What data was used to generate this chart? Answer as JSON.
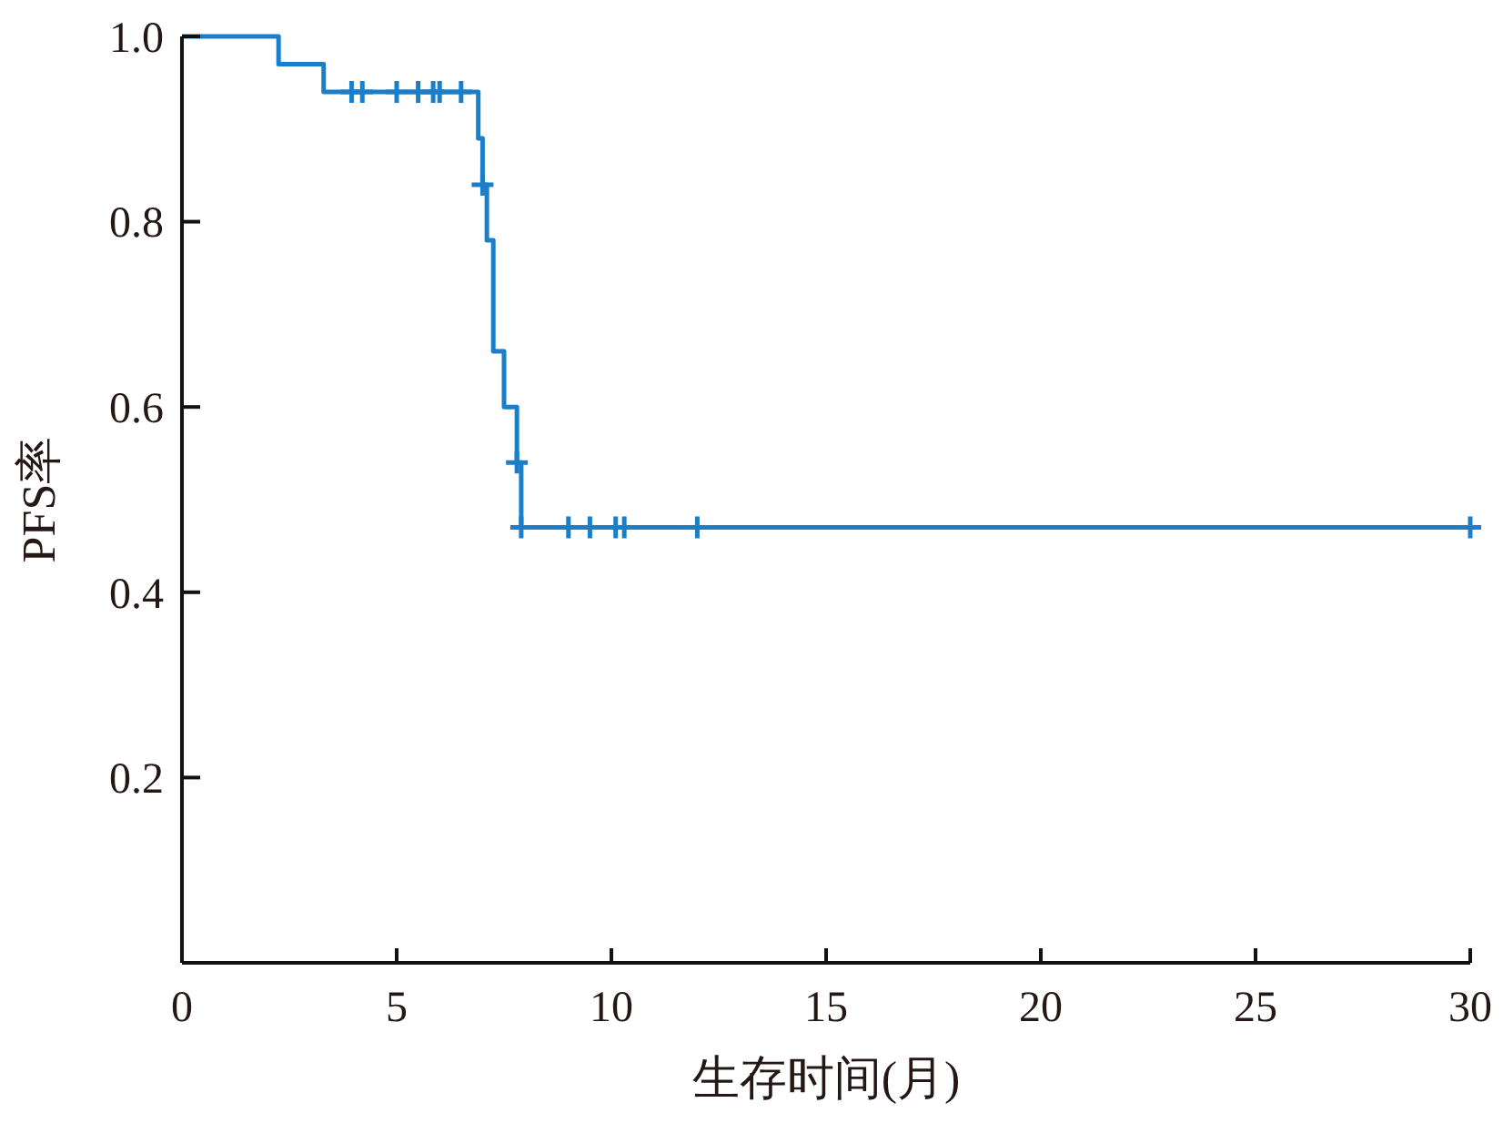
{
  "chart_data": {
    "type": "step",
    "xlabel": "生存时间(月)",
    "ylabel": "PFS率",
    "xlim": [
      0,
      30
    ],
    "xticks": [
      0,
      5,
      10,
      15,
      20,
      25,
      30
    ],
    "ylim": [
      0,
      1
    ],
    "yticks": [
      0.2,
      0.4,
      0.6,
      0.8,
      {
        "value": 1,
        "label": "1.0"
      }
    ],
    "grid": false,
    "series": [
      {
        "color": "#1a7fc8",
        "line_style": "solid",
        "x": [
          0,
          2.25,
          3.3,
          6.9,
          7.0,
          7.1,
          7.25,
          7.5,
          7.8,
          7.9,
          30
        ],
        "values": [
          1,
          0.97,
          0.94,
          0.89,
          0.84,
          0.78,
          0.66,
          0.6,
          0.54,
          0.47,
          0.47
        ]
      },
      {
        "type": "scatter",
        "color": "#1a7fc8",
        "marker": "cross",
        "x": [
          3.95,
          4.2,
          5.0,
          5.5,
          5.85,
          6.0,
          6.5,
          7.0,
          7.8,
          7.9,
          9.0,
          9.5,
          10.1,
          10.3,
          12.0,
          30
        ],
        "values": [
          0.94,
          0.94,
          0.94,
          0.94,
          0.94,
          0.94,
          0.94,
          0.84,
          0.54,
          0.47,
          0.47,
          0.47,
          0.47,
          0.47,
          0.47,
          0.47
        ]
      }
    ]
  }
}
